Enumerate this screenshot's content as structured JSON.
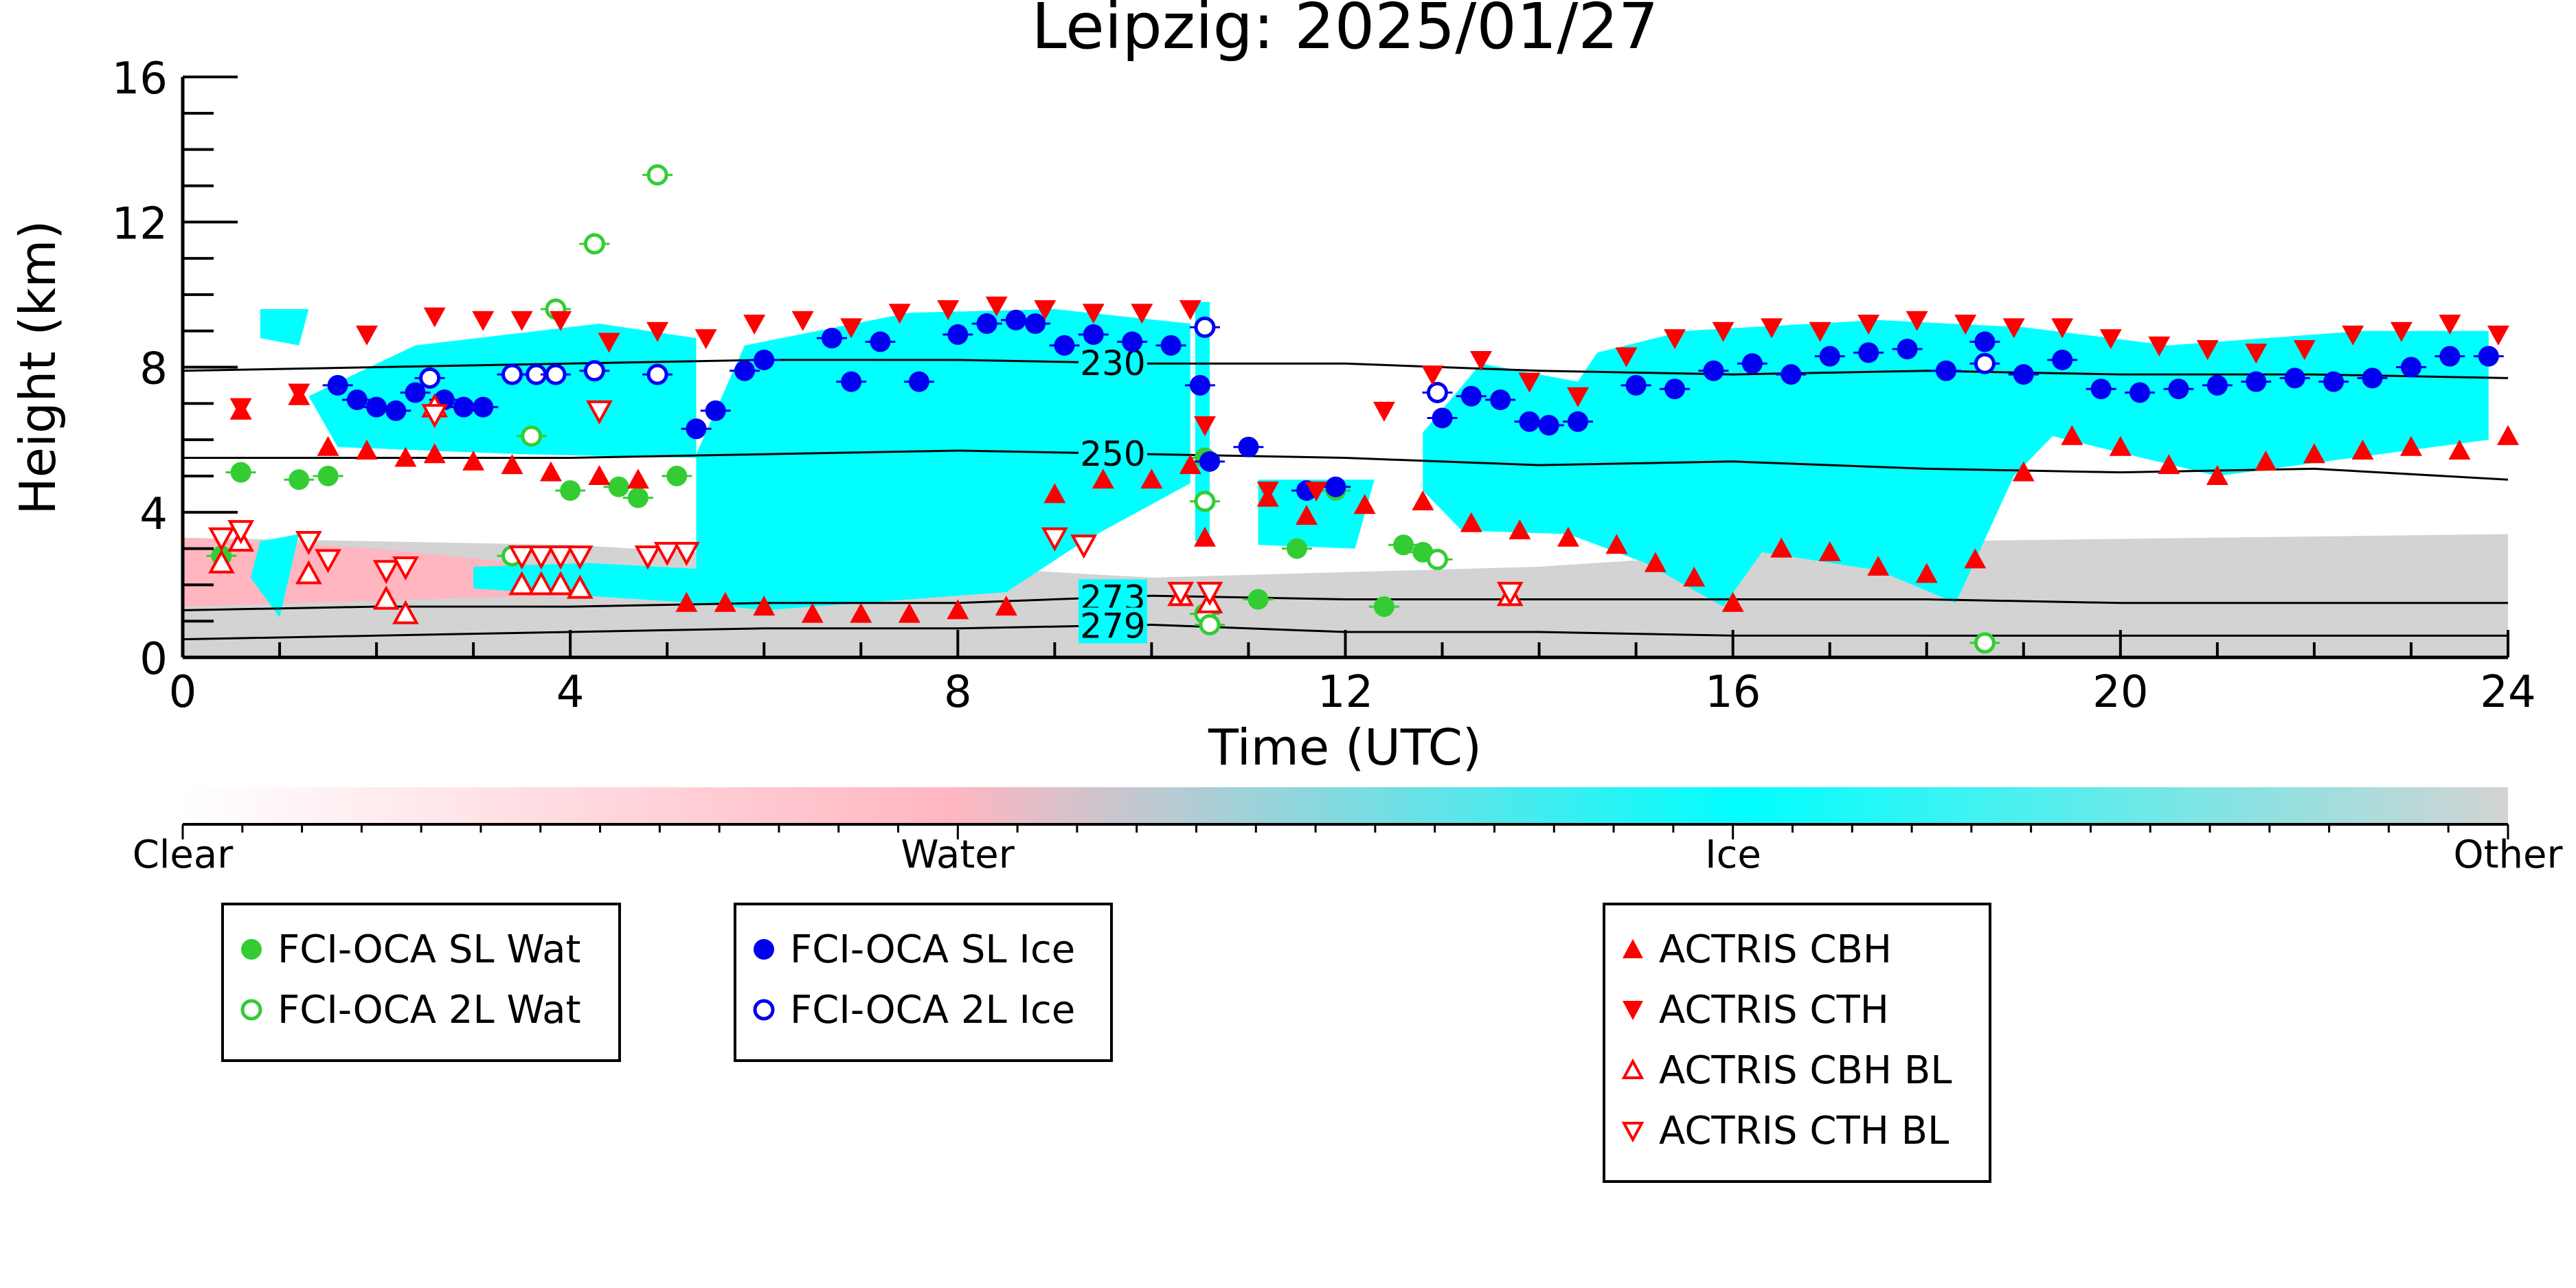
{
  "chart_data": {
    "type": "scatter",
    "title": "Leipzig: 2025/01/27",
    "xlabel": "Time (UTC)",
    "ylabel": "Height (km)",
    "xlim": [
      0,
      24
    ],
    "ylim": [
      0,
      16
    ],
    "xticks": [
      0,
      4,
      8,
      12,
      16,
      20,
      24
    ],
    "yticks": [
      0,
      4,
      8,
      12,
      16
    ],
    "grid": false,
    "colorbar": {
      "labels": [
        "Clear",
        "Water",
        "Ice",
        "Other"
      ],
      "colors": [
        "#ffffff",
        "#ffb6c1",
        "#00ffff",
        "#d3d3d3"
      ]
    },
    "contours": [
      {
        "label": "230",
        "x": [
          0,
          2,
          4,
          6,
          8,
          10,
          12,
          14,
          16,
          18,
          20,
          22,
          24
        ],
        "y": [
          7.9,
          8.0,
          8.1,
          8.2,
          8.2,
          8.1,
          8.1,
          7.9,
          7.8,
          7.9,
          7.8,
          7.8,
          7.7
        ]
      },
      {
        "label": "250",
        "x": [
          0,
          2,
          4,
          6,
          8,
          10,
          12,
          14,
          16,
          18,
          20,
          22,
          24
        ],
        "y": [
          5.5,
          5.5,
          5.5,
          5.6,
          5.7,
          5.6,
          5.5,
          5.3,
          5.4,
          5.2,
          5.1,
          5.2,
          4.9
        ]
      },
      {
        "label": "273",
        "x": [
          0,
          2,
          4,
          6,
          8,
          10,
          12,
          14,
          16,
          18,
          20,
          22,
          24
        ],
        "y": [
          1.3,
          1.4,
          1.4,
          1.5,
          1.5,
          1.7,
          1.6,
          1.6,
          1.6,
          1.6,
          1.5,
          1.5,
          1.5
        ]
      },
      {
        "label": "279",
        "x": [
          0,
          2,
          4,
          6,
          8,
          10,
          12,
          14,
          16,
          18,
          20,
          22,
          24
        ],
        "y": [
          0.5,
          0.6,
          0.7,
          0.8,
          0.8,
          0.9,
          0.7,
          0.7,
          0.6,
          0.6,
          0.6,
          0.6,
          0.6
        ]
      }
    ],
    "contour_label_x": 9.6,
    "series": [
      {
        "name": "FCI-OCA SL Wat",
        "marker": "circle-filled",
        "color": "#33cc33",
        "x": [
          0.4,
          0.6,
          1.2,
          1.5,
          4.0,
          4.5,
          4.7,
          5.1,
          10.55,
          11.1,
          11.5,
          11.9,
          12.4,
          12.6,
          12.8
        ],
        "y": [
          2.8,
          5.1,
          4.9,
          5.0,
          4.6,
          4.7,
          4.4,
          5.0,
          5.5,
          1.6,
          3.0,
          4.6,
          1.4,
          3.1,
          2.9
        ]
      },
      {
        "name": "FCI-OCA 2L Wat",
        "marker": "circle-open",
        "color": "#33cc33",
        "x": [
          3.4,
          3.6,
          3.85,
          4.25,
          4.9,
          10.55,
          10.55,
          10.6,
          12.95,
          18.6
        ],
        "y": [
          2.8,
          6.1,
          9.6,
          11.4,
          13.3,
          4.3,
          1.2,
          0.9,
          2.7,
          0.4
        ]
      },
      {
        "name": "FCI-OCA SL Ice",
        "marker": "circle-filled",
        "color": "#0000ee",
        "x": [
          1.6,
          1.8,
          2.0,
          2.2,
          2.4,
          2.7,
          2.9,
          3.1,
          5.3,
          5.5,
          5.8,
          6.0,
          6.7,
          6.9,
          7.2,
          7.6,
          8.0,
          8.3,
          8.6,
          8.8,
          9.1,
          9.4,
          9.8,
          10.2,
          10.5,
          10.6,
          11.0,
          11.6,
          11.9,
          13.0,
          13.3,
          13.6,
          13.9,
          14.1,
          14.4,
          15.0,
          15.4,
          15.8,
          16.2,
          16.6,
          17.0,
          17.4,
          17.8,
          18.2,
          18.6,
          19.0,
          19.4,
          19.8,
          20.2,
          20.6,
          21.0,
          21.4,
          21.8,
          22.2,
          22.6,
          23.0,
          23.4,
          23.8
        ],
        "y": [
          7.5,
          7.1,
          6.9,
          6.8,
          7.3,
          7.1,
          6.9,
          6.9,
          6.3,
          6.8,
          7.9,
          8.2,
          8.8,
          7.6,
          8.7,
          7.6,
          8.9,
          9.2,
          9.3,
          9.2,
          8.6,
          8.9,
          8.7,
          8.6,
          7.5,
          5.4,
          5.8,
          4.6,
          4.7,
          6.6,
          7.2,
          7.1,
          6.5,
          6.4,
          6.5,
          7.5,
          7.4,
          7.9,
          8.1,
          7.8,
          8.3,
          8.4,
          8.5,
          7.9,
          8.7,
          7.8,
          8.2,
          7.4,
          7.3,
          7.4,
          7.5,
          7.6,
          7.7,
          7.6,
          7.7,
          8.0,
          8.3,
          8.3
        ]
      },
      {
        "name": "FCI-OCA 2L Ice",
        "marker": "circle-open",
        "color": "#0000ee",
        "x": [
          2.55,
          3.4,
          3.65,
          3.85,
          4.25,
          4.9,
          10.55,
          12.95,
          18.6
        ],
        "y": [
          7.7,
          7.8,
          7.8,
          7.8,
          7.9,
          7.8,
          9.1,
          7.3,
          8.1
        ]
      },
      {
        "name": "ACTRIS CBH",
        "marker": "triangle-up-filled",
        "color": "#ff0000",
        "x": [
          0.6,
          1.2,
          1.5,
          1.9,
          2.3,
          2.6,
          3.0,
          3.4,
          3.8,
          4.3,
          4.7,
          5.2,
          5.6,
          6.0,
          6.5,
          7.0,
          7.5,
          8.0,
          8.5,
          9.0,
          9.5,
          10.0,
          10.4,
          10.55,
          11.2,
          11.6,
          12.2,
          12.8,
          13.3,
          13.8,
          14.3,
          14.8,
          15.2,
          15.6,
          16.0,
          16.5,
          17.0,
          17.5,
          18.0,
          18.5,
          19.0,
          19.5,
          20.0,
          20.5,
          21.0,
          21.5,
          22.0,
          22.5,
          23.0,
          23.5,
          24.0
        ],
        "y": [
          6.8,
          7.2,
          5.8,
          5.7,
          5.5,
          5.6,
          5.4,
          5.3,
          5.1,
          5.0,
          4.9,
          1.5,
          1.5,
          1.4,
          1.2,
          1.2,
          1.2,
          1.3,
          1.4,
          4.5,
          4.9,
          4.9,
          5.3,
          3.3,
          4.4,
          3.9,
          4.2,
          4.3,
          3.7,
          3.5,
          3.3,
          3.1,
          2.6,
          2.2,
          1.5,
          3.0,
          2.9,
          2.5,
          2.3,
          2.7,
          5.1,
          6.1,
          5.8,
          5.3,
          5.0,
          5.4,
          5.6,
          5.7,
          5.8,
          5.7,
          6.1
        ]
      },
      {
        "name": "ACTRIS CTH",
        "marker": "triangle-down-filled",
        "color": "#ff0000",
        "x": [
          0.6,
          1.2,
          1.9,
          2.6,
          3.1,
          3.5,
          3.9,
          4.4,
          4.9,
          5.4,
          5.9,
          6.4,
          6.9,
          7.4,
          7.9,
          8.4,
          8.9,
          9.4,
          9.9,
          10.4,
          10.55,
          11.2,
          11.7,
          12.4,
          12.9,
          13.4,
          13.9,
          14.4,
          14.9,
          15.4,
          15.9,
          16.4,
          16.9,
          17.4,
          17.9,
          18.4,
          18.9,
          19.4,
          19.9,
          20.4,
          20.9,
          21.4,
          21.9,
          22.4,
          22.9,
          23.4,
          23.9
        ],
        "y": [
          6.9,
          7.3,
          8.9,
          9.4,
          9.3,
          9.3,
          9.3,
          8.7,
          9.0,
          8.8,
          9.2,
          9.3,
          9.1,
          9.5,
          9.6,
          9.7,
          9.6,
          9.5,
          9.5,
          9.6,
          6.4,
          4.6,
          4.6,
          6.8,
          7.8,
          8.2,
          7.6,
          7.2,
          8.3,
          8.8,
          9.0,
          9.1,
          9.0,
          9.2,
          9.3,
          9.2,
          9.1,
          9.1,
          8.8,
          8.6,
          8.5,
          8.4,
          8.5,
          8.9,
          9.0,
          9.2,
          8.9
        ]
      },
      {
        "name": "ACTRIS CBH BL",
        "marker": "triangle-up-open",
        "color": "#ff0000",
        "x": [
          0.4,
          0.6,
          1.3,
          2.1,
          2.3,
          2.6,
          3.5,
          3.7,
          3.9,
          4.1,
          10.3,
          10.6,
          13.7
        ],
        "y": [
          2.6,
          3.2,
          2.3,
          1.6,
          1.2,
          6.9,
          2.0,
          2.0,
          2.0,
          1.9,
          1.7,
          1.5,
          1.7
        ]
      },
      {
        "name": "ACTRIS CTH BL",
        "marker": "triangle-down-open",
        "color": "#ff0000",
        "x": [
          0.4,
          0.6,
          1.3,
          1.5,
          2.1,
          2.3,
          2.6,
          3.5,
          3.7,
          3.9,
          4.1,
          4.3,
          4.8,
          5.0,
          5.2,
          9.0,
          9.3,
          10.3,
          10.6,
          13.7
        ],
        "y": [
          3.3,
          3.5,
          3.2,
          2.7,
          2.4,
          2.5,
          6.7,
          2.8,
          2.8,
          2.8,
          2.8,
          6.8,
          2.8,
          2.9,
          2.9,
          3.3,
          3.1,
          1.8,
          1.8,
          1.8
        ]
      }
    ],
    "legends": [
      {
        "entries": [
          "FCI-OCA SL Wat",
          "FCI-OCA 2L Wat"
        ]
      },
      {
        "entries": [
          "FCI-OCA SL Ice",
          "FCI-OCA 2L Ice"
        ]
      },
      {
        "entries": [
          "ACTRIS CBH",
          "ACTRIS CTH",
          "ACTRIS CBH BL",
          "ACTRIS CTH BL"
        ]
      }
    ]
  }
}
